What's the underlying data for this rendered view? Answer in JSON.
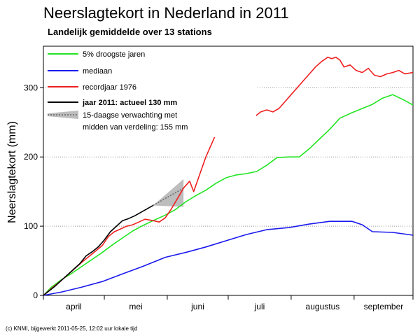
{
  "chart_data": {
    "type": "line",
    "title": "Neerslagtekort in Nederland in 2011",
    "subtitle": "Landelijk gemiddelde over 13 stations",
    "ylabel": "Neerslagtekort (mm)",
    "xlabel": "",
    "ylim": [
      0,
      360
    ],
    "yticks": [
      0,
      100,
      200,
      300
    ],
    "xlim": [
      "2011-04-01",
      "2011-09-30"
    ],
    "month_labels": [
      "april",
      "mei",
      "juni",
      "juli",
      "augustus",
      "september"
    ],
    "grid": "horizontal dotted",
    "legend_position": "top-left",
    "series": [
      {
        "name": "5% droogste jaren",
        "color": "#22e422",
        "x": [
          "2011-04-01",
          "2011-04-05",
          "2011-04-10",
          "2011-04-15",
          "2011-04-20",
          "2011-04-25",
          "2011-04-30",
          "2011-05-05",
          "2011-05-10",
          "2011-05-15",
          "2011-05-20",
          "2011-05-25",
          "2011-05-31",
          "2011-06-05",
          "2011-06-10",
          "2011-06-15",
          "2011-06-20",
          "2011-06-25",
          "2011-06-30",
          "2011-07-05",
          "2011-07-10",
          "2011-07-15",
          "2011-07-20",
          "2011-07-25",
          "2011-07-31",
          "2011-08-05",
          "2011-08-10",
          "2011-08-15",
          "2011-08-20",
          "2011-08-25",
          "2011-08-31",
          "2011-09-05",
          "2011-09-10",
          "2011-09-15",
          "2011-09-20",
          "2011-09-25",
          "2011-09-30"
        ],
        "y": [
          0,
          12,
          23,
          32,
          42,
          52,
          62,
          73,
          83,
          93,
          101,
          108,
          116,
          124,
          135,
          144,
          152,
          162,
          170,
          174,
          176,
          179,
          188,
          199,
          200,
          200,
          212,
          226,
          240,
          256,
          264,
          270,
          276,
          285,
          290,
          283,
          275
        ]
      },
      {
        "name": "mediaan",
        "color": "#1a1aee",
        "x": [
          "2011-04-01",
          "2011-04-10",
          "2011-04-20",
          "2011-04-30",
          "2011-05-10",
          "2011-05-20",
          "2011-05-31",
          "2011-06-10",
          "2011-06-20",
          "2011-06-30",
          "2011-07-10",
          "2011-07-20",
          "2011-07-31",
          "2011-08-10",
          "2011-08-20",
          "2011-08-31",
          "2011-09-05",
          "2011-09-10",
          "2011-09-20",
          "2011-09-30"
        ],
        "y": [
          0,
          5,
          12,
          20,
          31,
          42,
          55,
          62,
          70,
          79,
          88,
          95,
          98,
          103,
          107,
          107,
          102,
          92,
          91,
          87
        ]
      },
      {
        "name": "recordjaar 1976",
        "color": "#ee2020",
        "x": [
          "2011-04-01",
          "2011-04-05",
          "2011-04-10",
          "2011-04-15",
          "2011-04-20",
          "2011-04-25",
          "2011-04-30",
          "2011-05-03",
          "2011-05-06",
          "2011-05-09",
          "2011-05-12",
          "2011-05-15",
          "2011-05-18",
          "2011-05-21",
          "2011-05-25",
          "2011-05-28",
          "2011-05-31",
          "2011-06-03",
          "2011-06-06",
          "2011-06-09",
          "2011-06-12",
          "2011-06-14",
          "2011-06-17",
          "2011-06-20",
          "2011-06-23",
          "2011-06-26",
          "2011-06-29",
          "2011-07-02",
          "2011-07-05",
          "2011-07-08",
          "2011-07-11",
          "2011-07-14",
          "2011-07-17",
          "2011-07-20",
          "2011-07-23",
          "2011-07-26",
          "2011-07-29",
          "2011-08-01",
          "2011-08-04",
          "2011-08-07",
          "2011-08-10",
          "2011-08-13",
          "2011-08-16",
          "2011-08-19",
          "2011-08-21",
          "2011-08-23",
          "2011-08-25",
          "2011-08-27",
          "2011-08-30",
          "2011-09-02",
          "2011-09-05",
          "2011-09-08",
          "2011-09-11",
          "2011-09-14",
          "2011-09-17",
          "2011-09-20",
          "2011-09-23",
          "2011-09-26",
          "2011-09-30"
        ],
        "y": [
          0,
          10,
          22,
          35,
          48,
          60,
          72,
          85,
          92,
          96,
          100,
          102,
          106,
          110,
          108,
          106,
          112,
          125,
          140,
          155,
          165,
          150,
          175,
          200,
          220,
          240,
          250,
          252,
          255,
          260,
          255,
          258,
          265,
          268,
          265,
          270,
          280,
          290,
          300,
          310,
          320,
          330,
          338,
          344,
          342,
          344,
          340,
          330,
          333,
          325,
          322,
          328,
          318,
          316,
          320,
          322,
          325,
          320,
          322
        ]
      },
      {
        "name": "jaar 2011: actueel 130 mm",
        "color": "#000000",
        "x": [
          "2011-04-01",
          "2011-04-04",
          "2011-04-07",
          "2011-04-10",
          "2011-04-13",
          "2011-04-16",
          "2011-04-19",
          "2011-04-22",
          "2011-04-25",
          "2011-04-28",
          "2011-05-01",
          "2011-05-04",
          "2011-05-07",
          "2011-05-10",
          "2011-05-13",
          "2011-05-16",
          "2011-05-19",
          "2011-05-22",
          "2011-05-25"
        ],
        "y": [
          0,
          7,
          14,
          22,
          30,
          38,
          46,
          57,
          63,
          70,
          80,
          92,
          100,
          108,
          111,
          115,
          120,
          125,
          130
        ]
      }
    ],
    "forecast": {
      "name": "15-daagse verwachting met midden van verdeling: 155 mm",
      "color": "#888888",
      "x": [
        "2011-05-25",
        "2011-06-09"
      ],
      "median": [
        130,
        155
      ],
      "low": [
        130,
        128
      ],
      "high": [
        130,
        168
      ]
    }
  },
  "legend_line2": "midden van verdeling: 155 mm",
  "footer": "(c) KNMI, bijgewerkt 2011-05-25, 12:02 uur lokale tijd"
}
